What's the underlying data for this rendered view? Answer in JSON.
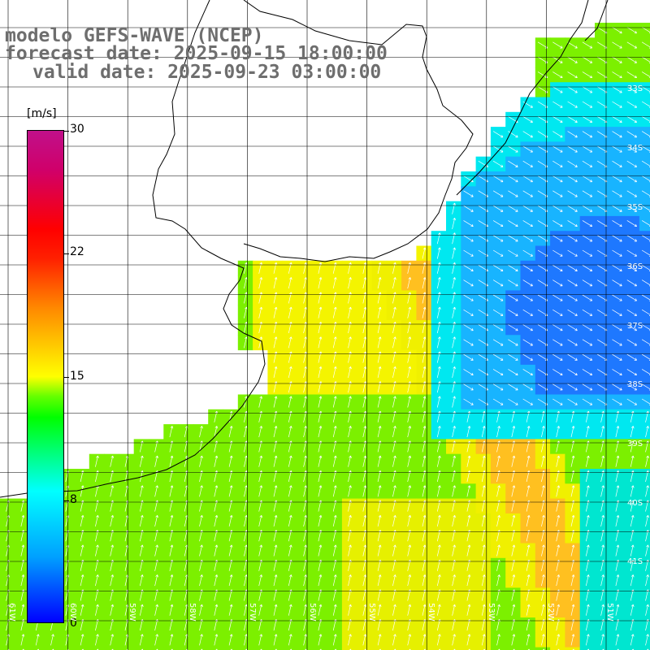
{
  "title": {
    "line1": "modelo GEFS-WAVE (NCEP)",
    "line2": "forecast date: 2025-09-15 18:00:00",
    "line3": "valid date: 2025-09-23 03:00:00"
  },
  "colorbar": {
    "unit": "[m/s]",
    "ticks": [
      "30",
      "22",
      "15",
      "8",
      "0"
    ]
  },
  "lon_labels": [
    "61W",
    "60W",
    "59W",
    "58W",
    "57W",
    "56W",
    "55W",
    "54W",
    "53W",
    "52W",
    "51W"
  ],
  "lat_labels": [
    "33S",
    "34S",
    "35S",
    "36S",
    "37S",
    "38S",
    "39S",
    "40S",
    "41S"
  ],
  "colors": {
    "land": "#ffffff",
    "grid": "#000000",
    "title": "#6e6e6e",
    "arrows": "#ffffff"
  }
}
